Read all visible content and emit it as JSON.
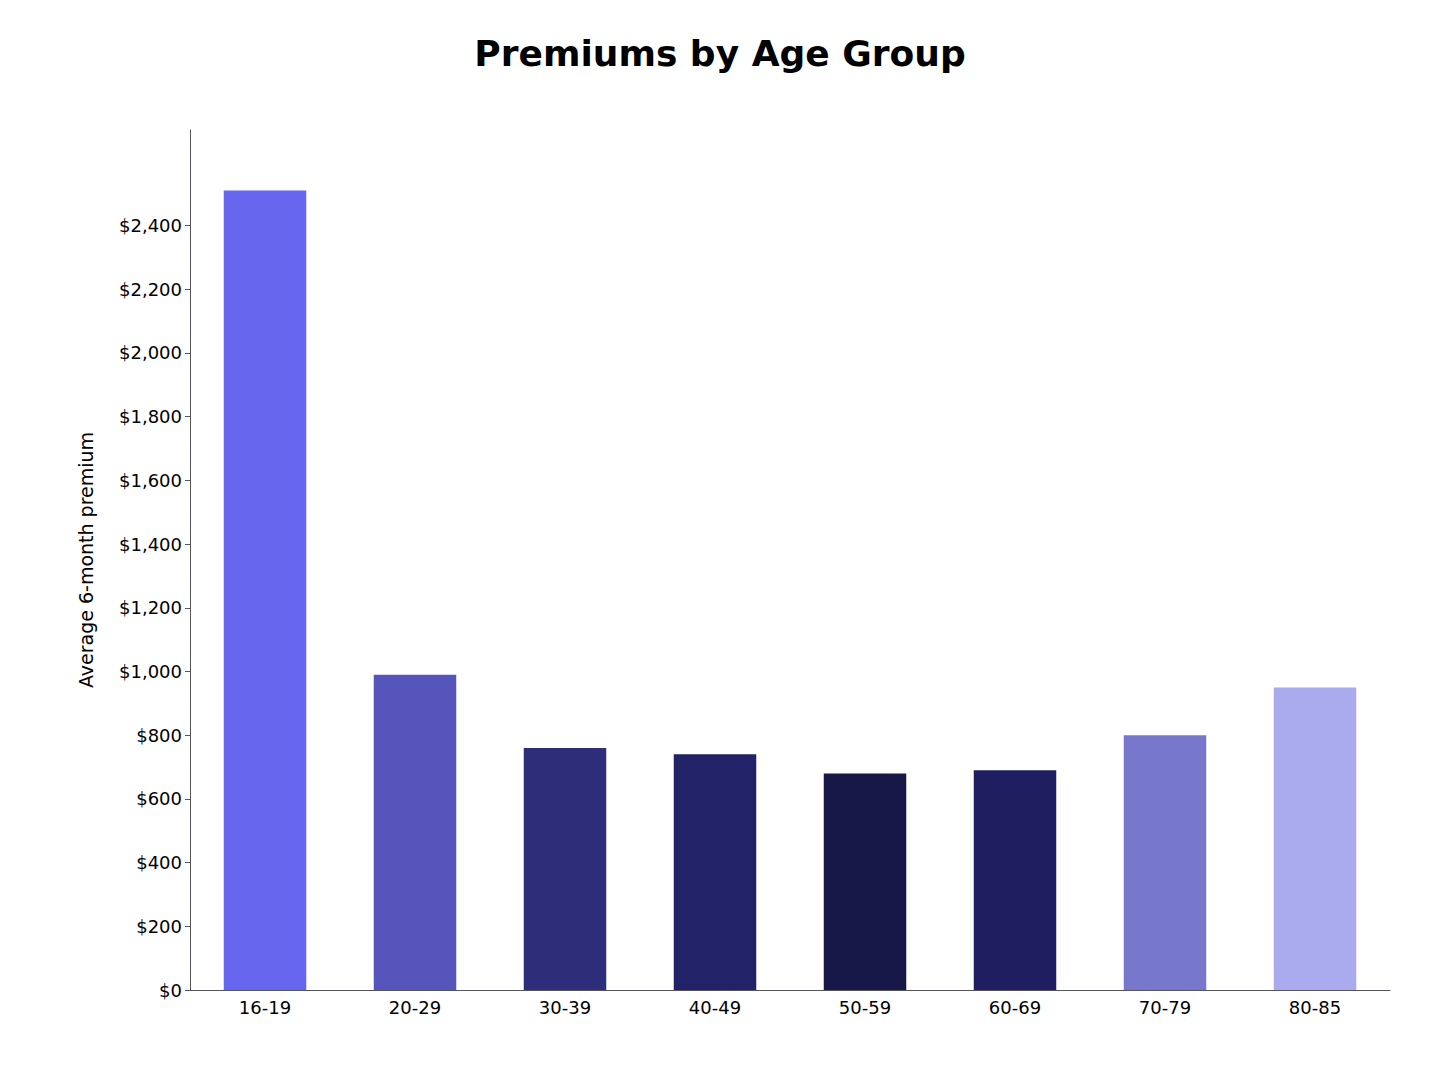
{
  "chart_data": {
    "type": "bar",
    "title": "Premiums by Age Group",
    "ylabel": "Average 6-month premium",
    "categories": [
      "16-19",
      "20-29",
      "30-39",
      "40-49",
      "50-59",
      "60-69",
      "70-79",
      "80-85"
    ],
    "values": [
      2510,
      990,
      760,
      740,
      680,
      690,
      800,
      950
    ],
    "colors": [
      "#6666ee",
      "#5555bb",
      "#2d2d7a",
      "#222268",
      "#181848",
      "#1e1e60",
      "#7777cc",
      "#aaaaee"
    ],
    "ylim": [
      0,
      2700
    ],
    "yticks": [
      {
        "value": 0,
        "label": "$0"
      },
      {
        "value": 200,
        "label": "$200"
      },
      {
        "value": 400,
        "label": "$400"
      },
      {
        "value": 600,
        "label": "$600"
      },
      {
        "value": 800,
        "label": "$800"
      },
      {
        "value": 1000,
        "label": "$1,000"
      },
      {
        "value": 1200,
        "label": "$1,200"
      },
      {
        "value": 1400,
        "label": "$1,400"
      },
      {
        "value": 1600,
        "label": "$1,600"
      },
      {
        "value": 1800,
        "label": "$1,800"
      },
      {
        "value": 2000,
        "label": "$2,000"
      },
      {
        "value": 2200,
        "label": "$2,200"
      },
      {
        "value": 2400,
        "label": "$2,400"
      }
    ],
    "grid": false
  }
}
